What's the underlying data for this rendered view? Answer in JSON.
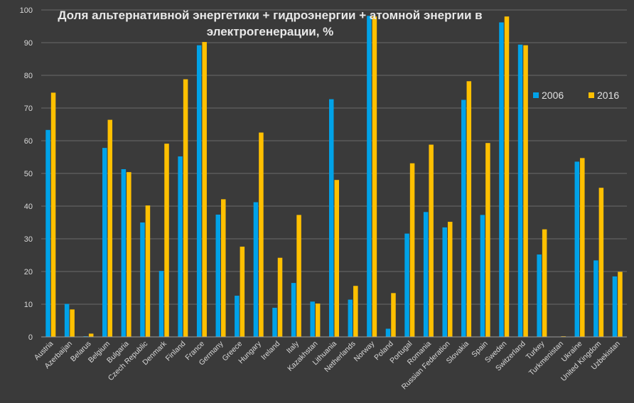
{
  "chart_data": {
    "type": "bar",
    "title": "Доля альтернативной энергетики + гидроэнергии + атомной энергии в электрогенерации, %",
    "title_lines": [
      "Доля альтернативной энергетики + гидроэнергии + атомной энергии в",
      "электрогенерации, %"
    ],
    "xlabel": "",
    "ylabel": "",
    "ylim": [
      0,
      100
    ],
    "yticks": [
      0,
      10,
      20,
      30,
      40,
      50,
      60,
      70,
      80,
      90,
      100
    ],
    "grid": true,
    "legend_position": "right",
    "categories": [
      "Austria",
      "Azerbaijan",
      "Belarus",
      "Belgium",
      "Bulgaria",
      "Czech Republic",
      "Denmark",
      "Finland",
      "France",
      "Germany",
      "Greece",
      "Hungary",
      "Ireland",
      "Italy",
      "Kazakhstan",
      "Lithuania",
      "Netherlands",
      "Norway",
      "Poland",
      "Portugal",
      "Romania",
      "Russian Federation",
      "Slovakia",
      "Spain",
      "Sweden",
      "Switzerland",
      "Turkey",
      "Turkmenistan",
      "Ukraine",
      "United Kingdom",
      "Uzbekistan"
    ],
    "series": [
      {
        "name": "2006",
        "color": "#00a2e8",
        "values": [
          63.3,
          10.1,
          0.2,
          57.8,
          51.3,
          35.0,
          20.2,
          55.2,
          89.2,
          37.4,
          12.6,
          41.2,
          8.9,
          16.5,
          10.8,
          72.7,
          11.4,
          98.2,
          2.5,
          31.6,
          38.2,
          33.5,
          72.5,
          37.3,
          96.2,
          89.4,
          25.2,
          0.1,
          53.6,
          23.4,
          18.5
        ]
      },
      {
        "name": "2016",
        "color": "#ffc000",
        "values": [
          74.7,
          8.4,
          1.0,
          66.4,
          50.4,
          40.2,
          59.1,
          78.8,
          90.2,
          42.1,
          27.6,
          62.5,
          24.2,
          37.3,
          10.2,
          48.0,
          15.6,
          98.0,
          13.4,
          53.1,
          58.8,
          35.2,
          78.2,
          59.3,
          98.0,
          89.2,
          32.9,
          0.2,
          54.7,
          45.6,
          19.9
        ]
      }
    ]
  }
}
